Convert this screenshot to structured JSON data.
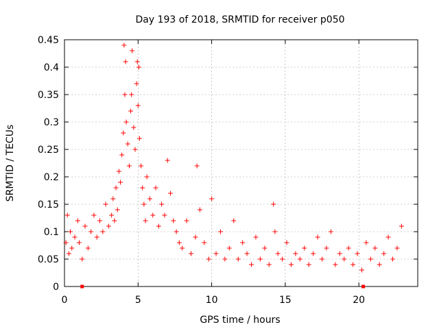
{
  "chart_data": {
    "type": "scatter",
    "title": "Day 193 of 2018, SRMTID for receiver p050",
    "xlabel": "GPS time / hours",
    "ylabel": "SRMTID / TECUs",
    "xlim": [
      0,
      24
    ],
    "ylim": [
      0,
      0.45
    ],
    "xticks": [
      0,
      5,
      10,
      15,
      20
    ],
    "xtick_labels": [
      "0",
      "5",
      "10",
      "15",
      "20"
    ],
    "yticks": [
      0,
      0.05,
      0.1,
      0.15,
      0.2,
      0.25,
      0.3,
      0.35,
      0.4,
      0.45
    ],
    "ytick_labels": [
      "0",
      "0.05",
      "0.1",
      "0.15",
      "0.2",
      "0.25",
      "0.3",
      "0.35",
      "0.4",
      "0.45"
    ],
    "grid": true,
    "marker": "+",
    "color": "#ff0000",
    "series": [
      {
        "name": "SRMTID",
        "x": [
          0.1,
          0.2,
          0.3,
          0.4,
          0.5,
          0.7,
          0.9,
          1.0,
          1.2,
          1.4,
          1.6,
          1.8,
          2.0,
          2.2,
          2.4,
          2.6,
          2.8,
          3.0,
          3.2,
          3.3,
          3.4,
          3.5,
          3.6,
          3.7,
          3.8,
          3.9,
          4.0,
          4.05,
          4.1,
          4.15,
          4.2,
          4.3,
          4.4,
          4.5,
          4.55,
          4.6,
          4.7,
          4.8,
          4.9,
          4.95,
          5.0,
          5.05,
          5.1,
          5.2,
          5.3,
          5.4,
          5.5,
          5.6,
          5.8,
          6.0,
          6.2,
          6.4,
          6.6,
          6.8,
          7.0,
          7.2,
          7.4,
          7.6,
          7.8,
          8.0,
          8.3,
          8.6,
          8.9,
          9.0,
          9.2,
          9.5,
          9.8,
          10.0,
          10.3,
          10.6,
          10.9,
          11.2,
          11.5,
          11.8,
          12.1,
          12.4,
          12.7,
          13.0,
          13.3,
          13.6,
          13.9,
          14.2,
          14.3,
          14.5,
          14.8,
          15.1,
          15.4,
          15.7,
          16.0,
          16.3,
          16.6,
          16.9,
          17.2,
          17.5,
          17.8,
          18.1,
          18.4,
          18.7,
          19.0,
          19.3,
          19.6,
          19.9,
          20.2,
          20.5,
          20.8,
          21.1,
          21.4,
          21.7,
          22.0,
          22.3,
          22.6,
          22.9
        ],
        "y": [
          0.08,
          0.13,
          0.06,
          0.1,
          0.07,
          0.09,
          0.12,
          0.08,
          0.05,
          0.11,
          0.07,
          0.1,
          0.13,
          0.09,
          0.12,
          0.1,
          0.15,
          0.11,
          0.13,
          0.16,
          0.12,
          0.18,
          0.14,
          0.21,
          0.19,
          0.24,
          0.28,
          0.44,
          0.35,
          0.41,
          0.3,
          0.26,
          0.22,
          0.32,
          0.35,
          0.43,
          0.29,
          0.25,
          0.37,
          0.41,
          0.33,
          0.4,
          0.27,
          0.22,
          0.18,
          0.15,
          0.12,
          0.2,
          0.16,
          0.13,
          0.18,
          0.11,
          0.15,
          0.13,
          0.23,
          0.17,
          0.12,
          0.1,
          0.08,
          0.07,
          0.12,
          0.06,
          0.09,
          0.22,
          0.14,
          0.08,
          0.05,
          0.16,
          0.06,
          0.1,
          0.05,
          0.07,
          0.12,
          0.05,
          0.08,
          0.06,
          0.04,
          0.09,
          0.05,
          0.07,
          0.04,
          0.15,
          0.1,
          0.06,
          0.05,
          0.08,
          0.04,
          0.06,
          0.05,
          0.07,
          0.04,
          0.06,
          0.09,
          0.05,
          0.07,
          0.1,
          0.04,
          0.06,
          0.05,
          0.07,
          0.04,
          0.06,
          0.03,
          0.08,
          0.05,
          0.07,
          0.04,
          0.06,
          0.09,
          0.05,
          0.07,
          0.11
        ]
      }
    ],
    "bottom_markers": [
      {
        "x": 1.2,
        "y": 0
      },
      {
        "x": 20.3,
        "y": 0
      }
    ]
  }
}
